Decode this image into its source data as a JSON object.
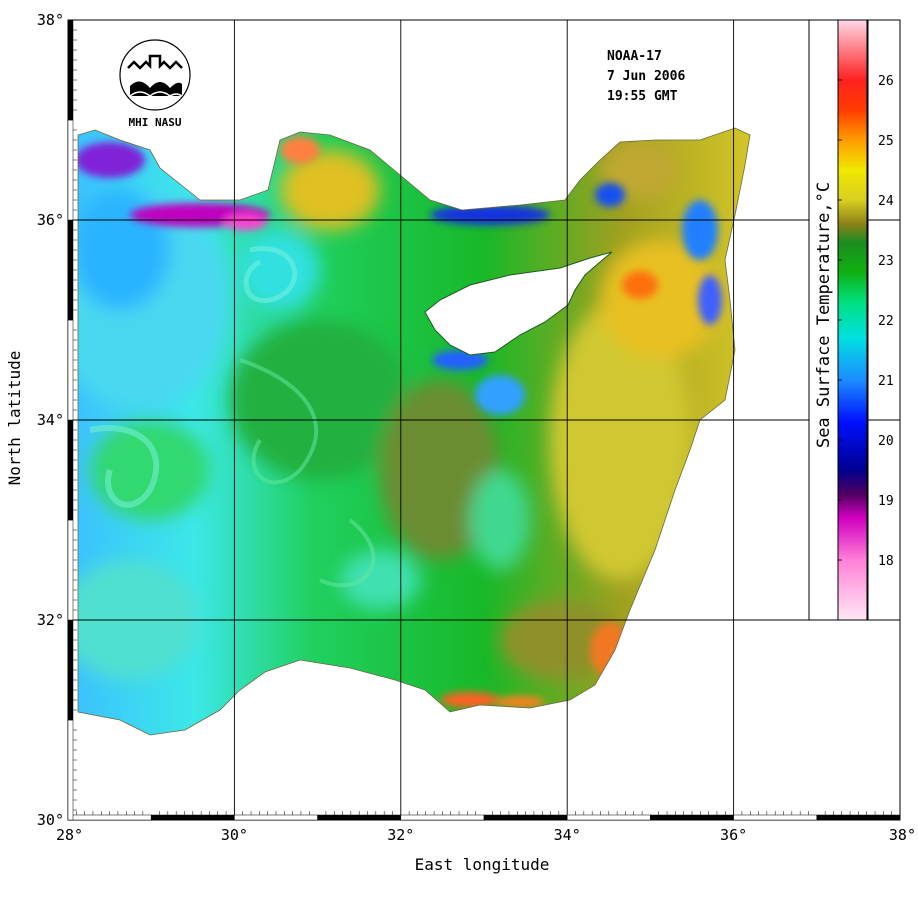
{
  "satellite": "NOAA-17",
  "date": "7 Jun 2006",
  "time": "19:55 GMT",
  "logo_text": "MHI NASU",
  "x_axis": {
    "title": "East longitude",
    "min": 28,
    "max": 38,
    "ticks": [
      {
        "value": 28,
        "label": "28°"
      },
      {
        "value": 30,
        "label": "30°"
      },
      {
        "value": 32,
        "label": "32°"
      },
      {
        "value": 34,
        "label": "34°"
      },
      {
        "value": 36,
        "label": "36°"
      },
      {
        "value": 38,
        "label": "38°"
      }
    ]
  },
  "y_axis": {
    "title": "North latitude",
    "min": 30,
    "max": 38,
    "ticks": [
      {
        "value": 30,
        "label": "30°"
      },
      {
        "value": 32,
        "label": "32°"
      },
      {
        "value": 34,
        "label": "34°"
      },
      {
        "value": 36,
        "label": "36°"
      },
      {
        "value": 38,
        "label": "38°"
      }
    ]
  },
  "colorbar": {
    "title": "Sea Surface Temperature,°C",
    "min": 17,
    "max": 27,
    "ticks": [
      {
        "value": 18,
        "label": "18"
      },
      {
        "value": 19,
        "label": "19"
      },
      {
        "value": 20,
        "label": "20"
      },
      {
        "value": 21,
        "label": "21"
      },
      {
        "value": 22,
        "label": "22"
      },
      {
        "value": 23,
        "label": "23"
      },
      {
        "value": 24,
        "label": "24"
      },
      {
        "value": 25,
        "label": "25"
      },
      {
        "value": 26,
        "label": "26"
      }
    ],
    "stops": [
      {
        "value": 17.0,
        "color": "#ffe8f4"
      },
      {
        "value": 18.0,
        "color": "#ff80d8"
      },
      {
        "value": 18.7,
        "color": "#d000c0"
      },
      {
        "value": 19.1,
        "color": "#500060"
      },
      {
        "value": 19.5,
        "color": "#000090"
      },
      {
        "value": 20.3,
        "color": "#0010ff"
      },
      {
        "value": 21.0,
        "color": "#1c8cff"
      },
      {
        "value": 21.7,
        "color": "#00e0e0"
      },
      {
        "value": 22.3,
        "color": "#00e080"
      },
      {
        "value": 22.8,
        "color": "#10b010"
      },
      {
        "value": 23.3,
        "color": "#1c8c20"
      },
      {
        "value": 23.6,
        "color": "#8c8018"
      },
      {
        "value": 24.0,
        "color": "#d8d020"
      },
      {
        "value": 24.5,
        "color": "#f0e800"
      },
      {
        "value": 25.0,
        "color": "#ff9c00"
      },
      {
        "value": 25.5,
        "color": "#ff3c00"
      },
      {
        "value": 26.0,
        "color": "#ff2020"
      },
      {
        "value": 27.0,
        "color": "#ffd8e8"
      }
    ]
  }
}
